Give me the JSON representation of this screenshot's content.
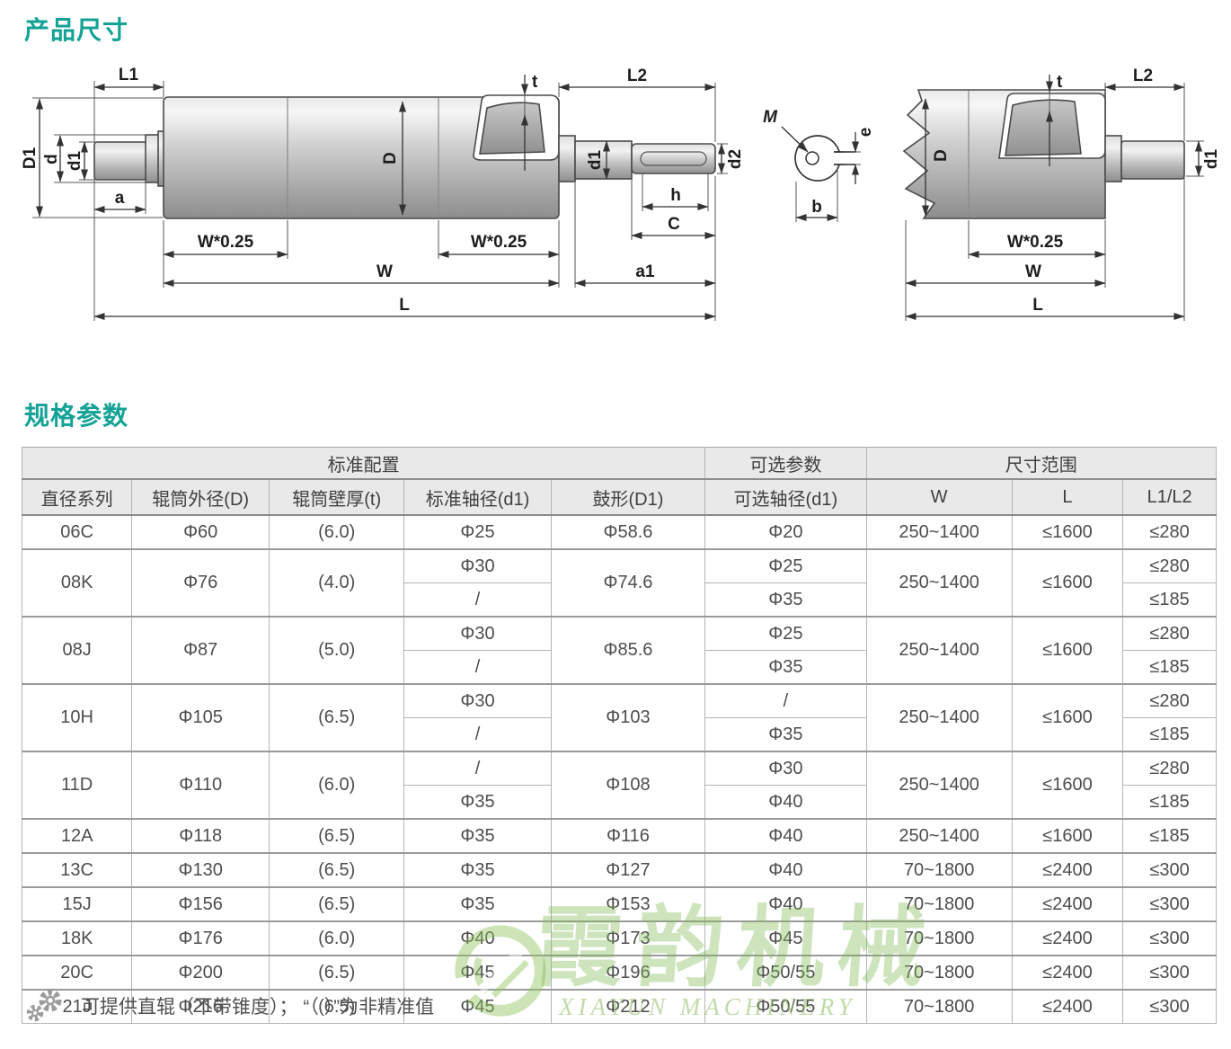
{
  "headings": {
    "product_dimensions": "产品尺寸",
    "specifications": "规格参数"
  },
  "colors": {
    "accent": "#14a296",
    "watermark_green": "#8abf5e",
    "table_border": "#b5b5b5",
    "table_header_bg": "#e9e9e9",
    "metal_light": "#f2f2f2",
    "metal_dark": "#8d8d8d"
  },
  "drawing": {
    "labels": {
      "L1": "L1",
      "L2": "L2",
      "D1": "D1",
      "D": "D",
      "d": "d",
      "d1": "d1",
      "d2": "d2",
      "a": "a",
      "a1": "a1",
      "b": "b",
      "C": "C",
      "e": "e",
      "h": "h",
      "t": "t",
      "W": "W",
      "L": "L",
      "W025": "W*0.25",
      "M": "M"
    }
  },
  "watermark": {
    "cn": "霞韵机械",
    "en": "XIAYUN MACHINERY"
  },
  "table": {
    "groups": [
      "标准配置",
      "可选参数",
      "尺寸范围"
    ],
    "columns": [
      "直径系列",
      "辊筒外径(D)",
      "辊筒壁厚(t)",
      "标准轴径(d1)",
      "鼓形(D1)",
      "可选轴径(d1)",
      "W",
      "L",
      "L1/L2"
    ],
    "rows": [
      {
        "series": "06C",
        "outer": "Φ60",
        "wall": "(6.0)",
        "std": [
          "Φ25"
        ],
        "drum": "Φ58.6",
        "opt": [
          "Φ20"
        ],
        "w": "250~1400",
        "l": "≤1600",
        "l1l2": [
          "≤280"
        ]
      },
      {
        "series": "08K",
        "outer": "Φ76",
        "wall": "(4.0)",
        "std": [
          "Φ30",
          "/"
        ],
        "drum": "Φ74.6",
        "opt": [
          "Φ25",
          "Φ35"
        ],
        "w": "250~1400",
        "l": "≤1600",
        "l1l2": [
          "≤280",
          "≤185"
        ]
      },
      {
        "series": "08J",
        "outer": "Φ87",
        "wall": "(5.0)",
        "std": [
          "Φ30",
          "/"
        ],
        "drum": "Φ85.6",
        "opt": [
          "Φ25",
          "Φ35"
        ],
        "w": "250~1400",
        "l": "≤1600",
        "l1l2": [
          "≤280",
          "≤185"
        ]
      },
      {
        "series": "10H",
        "outer": "Φ105",
        "wall": "(6.5)",
        "std": [
          "Φ30",
          "/"
        ],
        "drum": "Φ103",
        "opt": [
          "/",
          "Φ35"
        ],
        "w": "250~1400",
        "l": "≤1600",
        "l1l2": [
          "≤280",
          "≤185"
        ]
      },
      {
        "series": "11D",
        "outer": "Φ110",
        "wall": "(6.0)",
        "std": [
          "/",
          "Φ35"
        ],
        "drum": "Φ108",
        "opt": [
          "Φ30",
          "Φ40"
        ],
        "w": "250~1400",
        "l": "≤1600",
        "l1l2": [
          "≤280",
          "≤185"
        ]
      },
      {
        "series": "12A",
        "outer": "Φ118",
        "wall": "(6.5)",
        "std": [
          "Φ35"
        ],
        "drum": "Φ116",
        "opt": [
          "Φ40"
        ],
        "w": "250~1400",
        "l": "≤1600",
        "l1l2": [
          "≤185"
        ]
      },
      {
        "series": "13C",
        "outer": "Φ130",
        "wall": "(6.5)",
        "std": [
          "Φ35"
        ],
        "drum": "Φ127",
        "opt": [
          "Φ40"
        ],
        "w": "70~1800",
        "l": "≤2400",
        "l1l2": [
          "≤300"
        ]
      },
      {
        "series": "15J",
        "outer": "Φ156",
        "wall": "(6.5)",
        "std": [
          "Φ35"
        ],
        "drum": "Φ153",
        "opt": [
          "Φ40"
        ],
        "w": "70~1800",
        "l": "≤2400",
        "l1l2": [
          "≤300"
        ]
      },
      {
        "series": "18K",
        "outer": "Φ176",
        "wall": "(6.0)",
        "std": [
          "Φ40"
        ],
        "drum": "Φ173",
        "opt": [
          "Φ45"
        ],
        "w": "70~1800",
        "l": "≤2400",
        "l1l2": [
          "≤300"
        ]
      },
      {
        "series": "20C",
        "outer": "Φ200",
        "wall": "(6.5)",
        "std": [
          "Φ45"
        ],
        "drum": "Φ196",
        "opt": [
          "Φ50/55"
        ],
        "w": "70~1800",
        "l": "≤2400",
        "l1l2": [
          "≤300"
        ]
      },
      {
        "series": "21J",
        "outer": "Φ216",
        "wall": "(6.5)",
        "std": [
          "Φ45"
        ],
        "drum": "Φ212",
        "opt": [
          "Φ50/55"
        ],
        "w": "70~1800",
        "l": "≤2400",
        "l1l2": [
          "≤300"
        ]
      }
    ]
  },
  "note": {
    "text": "可提供直辊（不带锥度）； “（ ）”为非精准值"
  }
}
